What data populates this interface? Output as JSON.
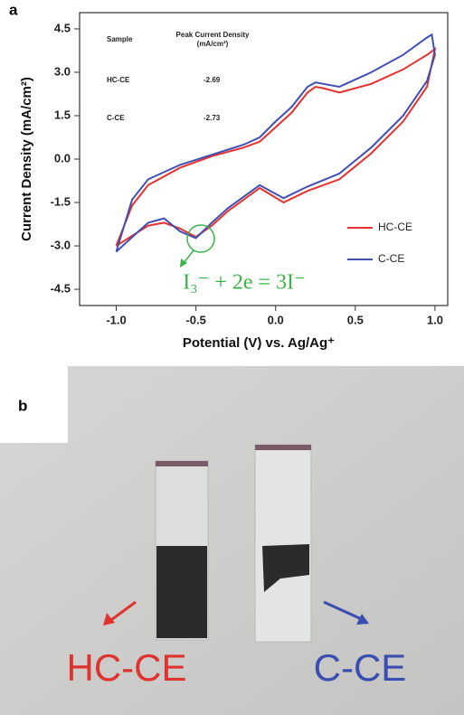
{
  "chart_data": {
    "type": "line",
    "panel_label": "a",
    "x_label": "Potential (V) vs. Ag/Ag⁺",
    "y_label": "Current Density (mA/cm²)",
    "xlim": [
      -1.23,
      1.08
    ],
    "ylim": [
      -5.06,
      5.06
    ],
    "xticks": [
      {
        "value": -1.0,
        "label": "-1.0"
      },
      -0.5,
      {
        "value": 0.0,
        "label": "0.0"
      },
      0.5,
      {
        "value": 1.0,
        "label": "1.0"
      }
    ],
    "yticks": [
      4.5,
      {
        "value": 3.0,
        "label": "3.0"
      },
      1.5,
      {
        "value": 0.0,
        "label": "0.0"
      },
      -1.5,
      {
        "value": -3.0,
        "label": "-3.0"
      },
      -4.5
    ],
    "legend": "lower right",
    "annotation": "I₃⁻ + 2e = 3I⁻",
    "annotation_color": "#3cb34a",
    "inset_table": {
      "header": [
        "Sample",
        "Peak Current Density (mA/cm²)"
      ],
      "rows": [
        [
          "HC-CE",
          "-2.69"
        ],
        [
          "C-CE",
          "-2.73"
        ]
      ]
    },
    "series": [
      {
        "name": "HC-CE",
        "color": "#e8302c",
        "x": [
          -1.0,
          -0.9,
          -0.8,
          -0.6,
          -0.4,
          -0.2,
          -0.1,
          0.0,
          0.1,
          0.2,
          0.25,
          0.3,
          0.4,
          0.6,
          0.8,
          0.95,
          1.0,
          0.95,
          0.8,
          0.6,
          0.4,
          0.2,
          0.05,
          -0.1,
          -0.2,
          -0.3,
          -0.4,
          -0.5,
          -0.6,
          -0.7,
          -0.8,
          -0.9,
          -1.0
        ],
        "values": [
          -3.0,
          -1.6,
          -0.9,
          -0.3,
          0.1,
          0.4,
          0.6,
          1.1,
          1.6,
          2.3,
          2.5,
          2.45,
          2.3,
          2.6,
          3.1,
          3.6,
          3.8,
          2.5,
          1.3,
          0.2,
          -0.7,
          -1.1,
          -1.5,
          -1.0,
          -1.4,
          -1.8,
          -2.3,
          -2.69,
          -2.4,
          -2.2,
          -2.3,
          -2.65,
          -3.0
        ]
      },
      {
        "name": "C-CE",
        "color": "#3f4fb4",
        "x": [
          -1.0,
          -0.9,
          -0.8,
          -0.6,
          -0.4,
          -0.2,
          -0.1,
          0.0,
          0.1,
          0.2,
          0.25,
          0.3,
          0.4,
          0.6,
          0.8,
          0.95,
          0.98,
          1.0,
          0.95,
          0.8,
          0.6,
          0.4,
          0.2,
          0.05,
          -0.1,
          -0.2,
          -0.3,
          -0.4,
          -0.5,
          -0.6,
          -0.7,
          -0.8,
          -0.9,
          -1.0
        ],
        "values": [
          -3.2,
          -1.4,
          -0.7,
          -0.2,
          0.15,
          0.5,
          0.75,
          1.3,
          1.8,
          2.5,
          2.65,
          2.6,
          2.5,
          3.0,
          3.6,
          4.2,
          4.3,
          3.6,
          2.7,
          1.5,
          0.4,
          -0.5,
          -0.95,
          -1.35,
          -0.9,
          -1.3,
          -1.7,
          -2.2,
          -2.73,
          -2.5,
          -2.05,
          -2.2,
          -2.7,
          -3.2
        ]
      }
    ]
  },
  "photo": {
    "panel_label": "b",
    "labels": [
      "HC-CE",
      "C-CE"
    ],
    "label_colors": [
      "#e0332f",
      "#3a4db0"
    ]
  }
}
